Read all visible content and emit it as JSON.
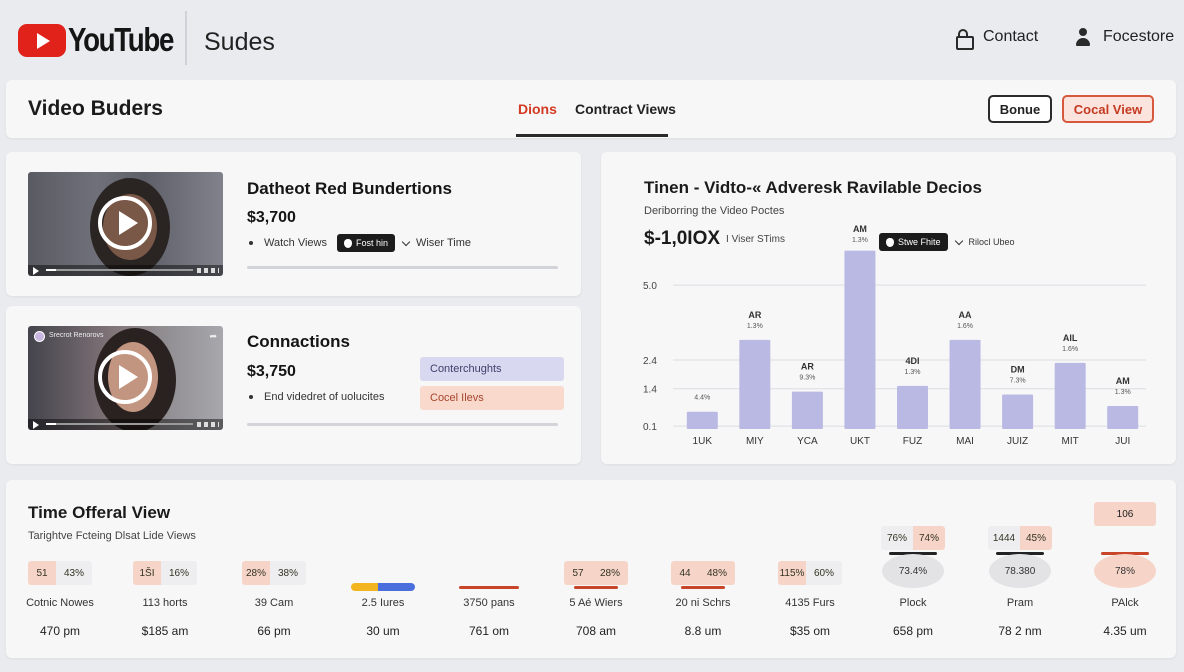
{
  "header": {
    "logo_text": "YouTube",
    "title": "Sudes",
    "contact_label": "Contact",
    "user_label": "Focestore"
  },
  "titlebar": {
    "title": "Video Buders",
    "tabs": [
      {
        "label": "Dions",
        "active": true
      },
      {
        "label": "Contract Views",
        "active": false
      }
    ],
    "buttons": {
      "bonue": "Bonue",
      "cocal_view": "Cocal View"
    }
  },
  "videos": [
    {
      "title": "Datheot Red Bundertions",
      "price": "$3,700",
      "meta_label": "Watch Views",
      "pill_label": "Fost hin",
      "dropdown_label": "Wiser Time"
    },
    {
      "title": "Connactions",
      "price": "$3,750",
      "meta_label": "End videdret of uolucites",
      "channel_label": "Srecrot Renorovs",
      "tags": [
        "Conterchughts",
        "Cocel Ilevs"
      ]
    }
  ],
  "chart_card": {
    "title": "Tinen - Vidto-« Adveresk Ravilable Decios",
    "subtitle": "Deriborring the Video Poctes",
    "price": "$-1,0IOX",
    "price_note": "I Viser STims",
    "pill_label": "Stwe Fhite",
    "dropdown_label": "Rilocl Ubeo"
  },
  "chart_data": {
    "type": "bar",
    "categories": [
      "1UK",
      "MIY",
      "YCA",
      "UKT",
      "FUZ",
      "MAI",
      "JUIZ",
      "MIT",
      "JUI"
    ],
    "values": [
      0.6,
      3.1,
      1.3,
      6.2,
      1.5,
      3.1,
      1.2,
      2.3,
      0.8
    ],
    "bar_labels": [
      [
        "",
        "4.4%"
      ],
      [
        "AR",
        "1.3%"
      ],
      [
        "AR",
        "9.3%"
      ],
      [
        "AM",
        "1.3%"
      ],
      [
        "4DI",
        "1.3%"
      ],
      [
        "AA",
        "1.6%"
      ],
      [
        "DM",
        "7.3%"
      ],
      [
        "AIL",
        "1.6%"
      ],
      [
        "AM",
        "1.3%"
      ]
    ],
    "y_ticks": [
      "0.1",
      "1.4",
      "2.4",
      "5.0"
    ],
    "y_tick_values": [
      0.1,
      1.4,
      2.4,
      5.0
    ],
    "ylim": [
      0,
      6.5
    ],
    "bar_color": "#b9b9e3",
    "grid": true
  },
  "bottom": {
    "title": "Time Offeral View",
    "subtitle": "Tarightve Fcteing Dlsat Lide Views",
    "columns": [
      {
        "kind": "pair",
        "left": "51",
        "right": "43%",
        "name": "Cotnic Nowes",
        "time": "470 pm"
      },
      {
        "kind": "pair",
        "left": "1ŠI",
        "right": "16%",
        "name": "113 horts",
        "time": "$185 am"
      },
      {
        "kind": "pair",
        "left": "28%",
        "right": "38%",
        "name": "39 Cam",
        "time": "66 pm"
      },
      {
        "kind": "bar-multi",
        "name": "2.5 Iures",
        "time": "30 um"
      },
      {
        "kind": "bar-red",
        "name": "3750 pans",
        "time": "761 om"
      },
      {
        "kind": "pair-bar",
        "left": "57",
        "right": "28%",
        "name": "5 Aé Wiers",
        "time": "708 am"
      },
      {
        "kind": "pair-bar",
        "left": "44",
        "right": "48%",
        "name": "20 ni Schrs",
        "time": "8.8 um"
      },
      {
        "kind": "pair",
        "left": "115%",
        "right": "60%",
        "name": "4135 Furs",
        "time": "$35 om"
      },
      {
        "kind": "oval",
        "top_left": "76%",
        "top_right": "74%",
        "value": "73.4%",
        "name": "Plock",
        "time": "658 pm"
      },
      {
        "kind": "oval",
        "top_left": "1444",
        "top_right": "45%",
        "value": "78.380",
        "name": "Pram",
        "time": "78 2 nm"
      },
      {
        "kind": "oval-orange",
        "top_single": "106",
        "value": "78%",
        "name": "PAlck",
        "time": "4.35 um"
      }
    ]
  },
  "colors": {
    "brand_red": "#e0221b",
    "accent_orange": "#d6583d",
    "bar_purple": "#b9b9e3",
    "tag_purple": "#d8d8f0",
    "tag_orange": "#f8d9cc"
  }
}
